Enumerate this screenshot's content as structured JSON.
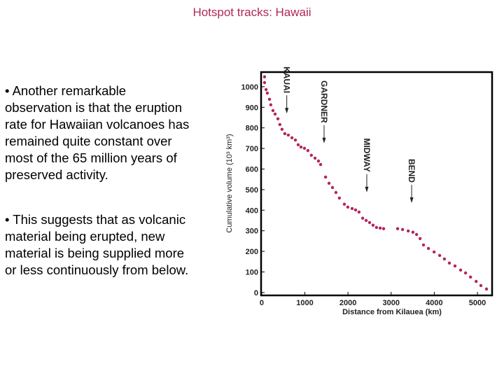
{
  "title": "Hotspot tracks: Hawaii",
  "bullets": [
    {
      "lines": [
        "• Another remarkable",
        "observation is that the eruption",
        "rate for Hawaiian volcanoes has",
        "remained quite constant over",
        "most of the 65 million years of",
        "preserved activity."
      ]
    },
    {
      "lines": [
        "• This suggests that as volcanic",
        "material being erupted, new",
        "material is being supplied more",
        "or less continuously from below."
      ]
    }
  ],
  "chart_data": {
    "type": "scatter",
    "xlabel": "Distance from Kilauea (km)",
    "ylabel": "Cumulative volume (10³ km³)",
    "color": "#b5245e",
    "x": [
      65,
      65,
      100,
      130,
      180,
      210,
      260,
      310,
      375,
      420,
      470,
      535,
      615,
      700,
      780,
      845,
      910,
      990,
      1070,
      1150,
      1235,
      1315,
      1365,
      1480,
      1560,
      1640,
      1720,
      1800,
      1915,
      1995,
      2095,
      2175,
      2255,
      2340,
      2420,
      2500,
      2580,
      2660,
      2745,
      2825,
      3150,
      3265,
      3395,
      3505,
      3590,
      3670,
      3750,
      3865,
      3995,
      4125,
      4235,
      4350,
      4480,
      4610,
      4725,
      4840,
      4970,
      5080,
      5210
    ],
    "values": [
      1048,
      1020,
      986,
      969,
      939,
      912,
      884,
      867,
      844,
      816,
      793,
      772,
      765,
      752,
      741,
      718,
      707,
      701,
      690,
      667,
      653,
      639,
      622,
      561,
      531,
      510,
      486,
      459,
      429,
      415,
      408,
      401,
      391,
      361,
      350,
      340,
      327,
      316,
      313,
      310,
      310,
      306,
      299,
      293,
      282,
      262,
      231,
      214,
      197,
      180,
      163,
      143,
      129,
      109,
      95,
      75,
      54,
      34,
      17
    ],
    "xlim": [
      -15,
      5340
    ],
    "ylim": [
      -14,
      1071
    ],
    "xticks": [
      0,
      1000,
      2000,
      3000,
      4000,
      5000
    ],
    "yticks": [
      0,
      100,
      200,
      300,
      400,
      500,
      600,
      700,
      800,
      900,
      1000
    ],
    "annotations": [
      {
        "text": "KAUAI",
        "x": 580,
        "y": 870
      },
      {
        "text": "GARDNER",
        "x": 1445,
        "y": 725
      },
      {
        "text": "MIDWAY",
        "x": 2435,
        "y": 487
      },
      {
        "text": "BEND",
        "x": 3475,
        "y": 435
      }
    ]
  }
}
